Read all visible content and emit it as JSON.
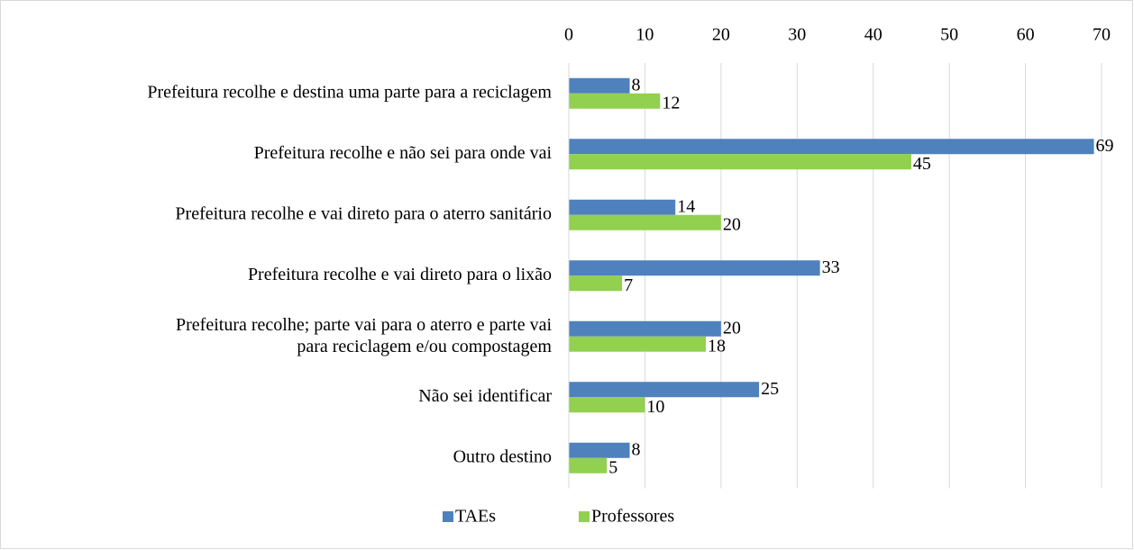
{
  "chart_data": {
    "type": "bar",
    "orientation": "horizontal",
    "categories": [
      "Prefeitura recolhe e destina uma parte para a reciclagem",
      "Prefeitura recolhe e não sei para onde vai",
      "Prefeitura recolhe e vai direto para o aterro sanitário",
      "Prefeitura recolhe e vai direto para o lixão",
      "Prefeitura recolhe; parte vai para o aterro e parte vai para reciclagem e/ou compostagem",
      "Não sei identificar",
      "Outro destino"
    ],
    "series": [
      {
        "name": "TAEs",
        "color": "#4f81bd",
        "values": [
          8,
          69,
          14,
          33,
          20,
          25,
          8
        ]
      },
      {
        "name": "Professores",
        "color": "#92d050",
        "values": [
          12,
          45,
          20,
          7,
          18,
          10,
          5
        ]
      }
    ],
    "xlim": [
      0,
      70
    ],
    "xticks": [
      0,
      10,
      20,
      30,
      40,
      50,
      60,
      70
    ],
    "grid": true,
    "legend": "bottom"
  }
}
